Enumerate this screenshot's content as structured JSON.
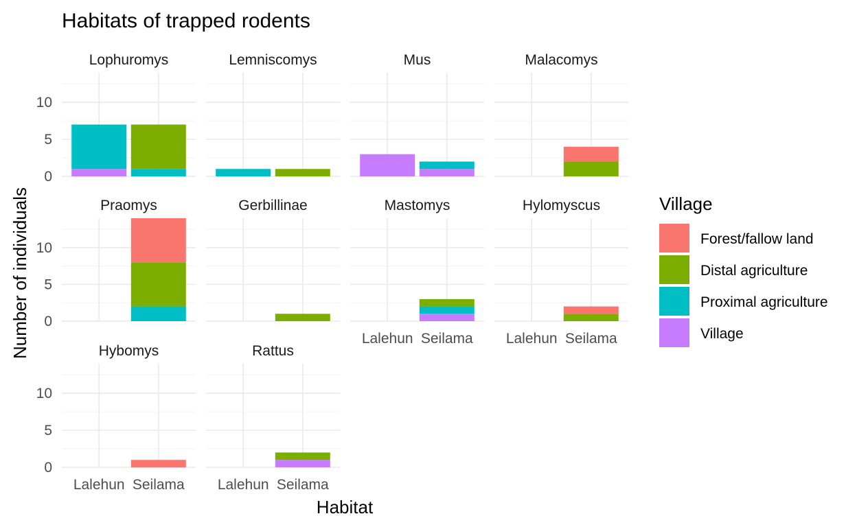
{
  "chart_data": {
    "type": "bar",
    "stacked": true,
    "faceted": true,
    "facet_columns": 4,
    "title": "Habitats of trapped rodents",
    "xlabel": "Habitat",
    "ylabel": "Number of individuals",
    "categories": [
      "Lalehun",
      "Seilama"
    ],
    "ylim": [
      0,
      14
    ],
    "yticks": [
      0,
      5,
      10
    ],
    "grid": true,
    "legend": {
      "title": "Village",
      "position": "right",
      "entries": [
        {
          "label": "Forest/fallow land",
          "color": "#F8766D"
        },
        {
          "label": "Distal agriculture",
          "color": "#7CAE00"
        },
        {
          "label": "Proximal agriculture",
          "color": "#00BFC4"
        },
        {
          "label": "Village",
          "color": "#C77CFF"
        }
      ]
    },
    "stack_order_bottom_to_top": [
      "Village",
      "Proximal agriculture",
      "Distal agriculture",
      "Forest/fallow land"
    ],
    "facets": [
      {
        "name": "Lophuromys",
        "values": {
          "Lalehun": {
            "Village": 1,
            "Proximal agriculture": 6,
            "Distal agriculture": 0,
            "Forest/fallow land": 0
          },
          "Seilama": {
            "Village": 0,
            "Proximal agriculture": 1,
            "Distal agriculture": 6,
            "Forest/fallow land": 0
          }
        }
      },
      {
        "name": "Lemniscomys",
        "values": {
          "Lalehun": {
            "Village": 0,
            "Proximal agriculture": 1,
            "Distal agriculture": 0,
            "Forest/fallow land": 0
          },
          "Seilama": {
            "Village": 0,
            "Proximal agriculture": 0,
            "Distal agriculture": 1,
            "Forest/fallow land": 0
          }
        }
      },
      {
        "name": "Mus",
        "values": {
          "Lalehun": {
            "Village": 3,
            "Proximal agriculture": 0,
            "Distal agriculture": 0,
            "Forest/fallow land": 0
          },
          "Seilama": {
            "Village": 1,
            "Proximal agriculture": 1,
            "Distal agriculture": 0,
            "Forest/fallow land": 0
          }
        }
      },
      {
        "name": "Malacomys",
        "values": {
          "Lalehun": {
            "Village": 0,
            "Proximal agriculture": 0,
            "Distal agriculture": 0,
            "Forest/fallow land": 0
          },
          "Seilama": {
            "Village": 0,
            "Proximal agriculture": 0,
            "Distal agriculture": 2,
            "Forest/fallow land": 2
          }
        }
      },
      {
        "name": "Praomys",
        "values": {
          "Lalehun": {
            "Village": 0,
            "Proximal agriculture": 0,
            "Distal agriculture": 0,
            "Forest/fallow land": 0
          },
          "Seilama": {
            "Village": 0,
            "Proximal agriculture": 2,
            "Distal agriculture": 6,
            "Forest/fallow land": 6
          }
        }
      },
      {
        "name": "Gerbillinae",
        "values": {
          "Lalehun": {
            "Village": 0,
            "Proximal agriculture": 0,
            "Distal agriculture": 0,
            "Forest/fallow land": 0
          },
          "Seilama": {
            "Village": 0,
            "Proximal agriculture": 0,
            "Distal agriculture": 1,
            "Forest/fallow land": 0
          }
        }
      },
      {
        "name": "Mastomys",
        "values": {
          "Lalehun": {
            "Village": 0,
            "Proximal agriculture": 0,
            "Distal agriculture": 0,
            "Forest/fallow land": 0
          },
          "Seilama": {
            "Village": 1,
            "Proximal agriculture": 1,
            "Distal agriculture": 1,
            "Forest/fallow land": 0
          }
        }
      },
      {
        "name": "Hylomyscus",
        "values": {
          "Lalehun": {
            "Village": 0,
            "Proximal agriculture": 0,
            "Distal agriculture": 0,
            "Forest/fallow land": 0
          },
          "Seilama": {
            "Village": 0,
            "Proximal agriculture": 0,
            "Distal agriculture": 1,
            "Forest/fallow land": 1
          }
        }
      },
      {
        "name": "Hybomys",
        "values": {
          "Lalehun": {
            "Village": 0,
            "Proximal agriculture": 0,
            "Distal agriculture": 0,
            "Forest/fallow land": 0
          },
          "Seilama": {
            "Village": 0,
            "Proximal agriculture": 0,
            "Distal agriculture": 0,
            "Forest/fallow land": 1
          }
        }
      },
      {
        "name": "Rattus",
        "values": {
          "Lalehun": {
            "Village": 0,
            "Proximal agriculture": 0,
            "Distal agriculture": 0,
            "Forest/fallow land": 0
          },
          "Seilama": {
            "Village": 1,
            "Proximal agriculture": 0,
            "Distal agriculture": 1,
            "Forest/fallow land": 0
          }
        }
      }
    ]
  }
}
